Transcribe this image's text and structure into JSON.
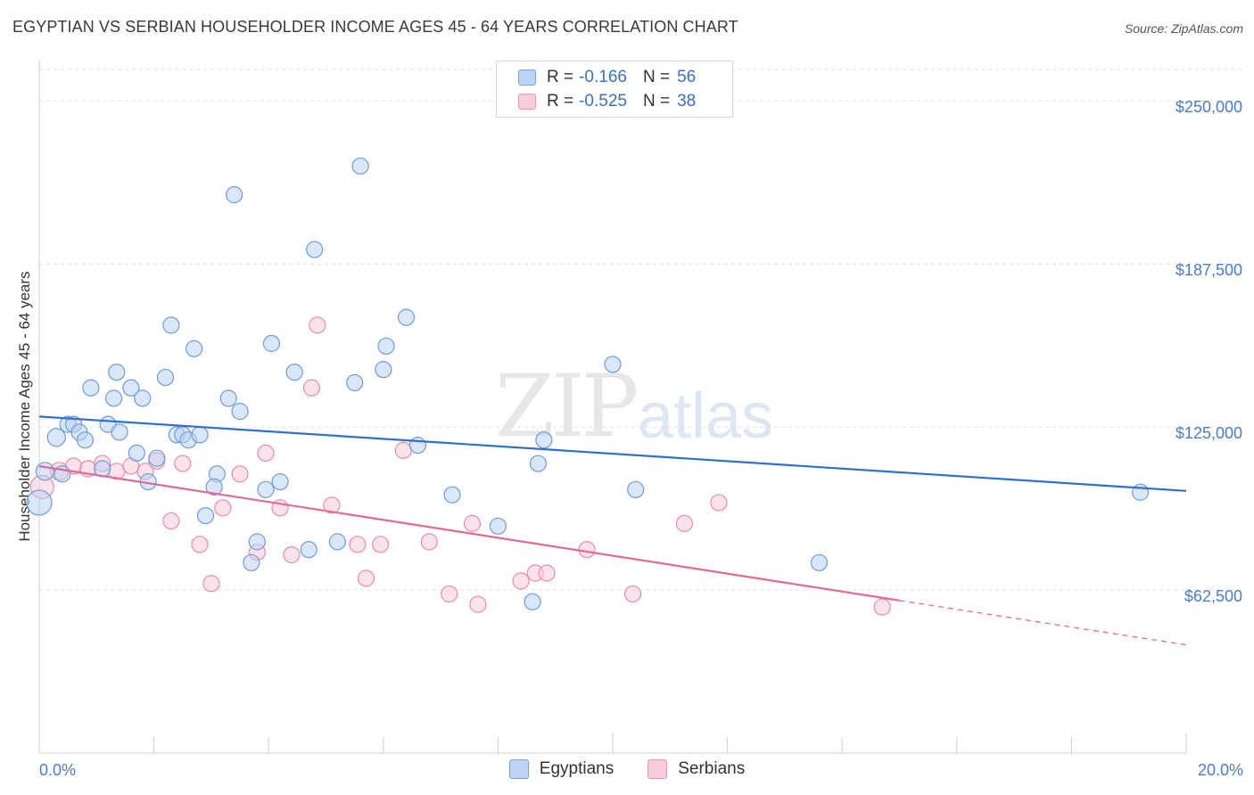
{
  "title": "EGYPTIAN VS SERBIAN HOUSEHOLDER INCOME AGES 45 - 64 YEARS CORRELATION CHART",
  "source": "Source: ZipAtlas.com",
  "watermark": {
    "part1": "ZIP",
    "part2": "atlas"
  },
  "legend_top": {
    "rows": [
      {
        "r_label": "R =",
        "r_value": "-0.166",
        "n_label": "N =",
        "n_value": "56"
      },
      {
        "r_label": "R =",
        "r_value": "-0.525",
        "n_label": "N =",
        "n_value": "38"
      }
    ]
  },
  "legend_bottom": [
    "Egyptians",
    "Serbians"
  ],
  "colors": {
    "blue_fill": "#bcd3f3",
    "blue_stroke": "#6f9bdc",
    "blue_line": "#2f6fd0",
    "pink_fill": "#f9ccd9",
    "pink_stroke": "#e98aa9",
    "pink_line": "#e36a95",
    "axis_label": "#4a7cc9",
    "grid": "#e0e0e0"
  },
  "chart_data": {
    "type": "scatter",
    "title": "EGYPTIAN VS SERBIAN HOUSEHOLDER INCOME AGES 45 - 64 YEARS CORRELATION CHART",
    "xlabel": "",
    "ylabel": "Householder Income Ages 45 - 64 years",
    "xlim": [
      0,
      20
    ],
    "ylim": [
      0,
      262000
    ],
    "x_tick_labels": [
      "0.0%",
      "20.0%"
    ],
    "y_ticks": [
      62500,
      125000,
      187500,
      250000
    ],
    "y_tick_labels": [
      "$62,500",
      "$125,000",
      "$187,500",
      "$250,000"
    ],
    "grid": true,
    "legend_position": "top-center",
    "series": [
      {
        "name": "Egyptians",
        "r": -0.166,
        "n": 56,
        "trend": {
          "x0": 0,
          "y0": 129000,
          "x1": 20,
          "y1": 100500
        },
        "points": [
          [
            0.0,
            96000,
            14
          ],
          [
            0.1,
            108000,
            10
          ],
          [
            0.3,
            121000,
            10
          ],
          [
            0.4,
            107000,
            9
          ],
          [
            0.5,
            126000,
            9
          ],
          [
            0.6,
            126000,
            9
          ],
          [
            0.7,
            123000,
            9
          ],
          [
            0.8,
            120000,
            9
          ],
          [
            0.9,
            140000,
            9
          ],
          [
            1.1,
            109000,
            9
          ],
          [
            1.2,
            126000,
            9
          ],
          [
            1.3,
            136000,
            9
          ],
          [
            1.4,
            123000,
            9
          ],
          [
            1.35,
            146000,
            9
          ],
          [
            1.6,
            140000,
            9
          ],
          [
            1.7,
            115000,
            9
          ],
          [
            1.8,
            136000,
            9
          ],
          [
            1.9,
            104000,
            9
          ],
          [
            2.05,
            113000,
            9
          ],
          [
            2.2,
            144000,
            9
          ],
          [
            2.3,
            164000,
            9
          ],
          [
            2.4,
            122000,
            9
          ],
          [
            2.5,
            122000,
            9
          ],
          [
            2.6,
            120000,
            9
          ],
          [
            2.7,
            155000,
            9
          ],
          [
            2.8,
            122000,
            9
          ],
          [
            2.9,
            91000,
            9
          ],
          [
            3.1,
            107000,
            9
          ],
          [
            3.05,
            102000,
            9
          ],
          [
            3.3,
            136000,
            9
          ],
          [
            3.4,
            214000,
            9
          ],
          [
            3.5,
            131000,
            9
          ],
          [
            3.7,
            73000,
            9
          ],
          [
            3.8,
            81000,
            9
          ],
          [
            3.95,
            101000,
            9
          ],
          [
            4.05,
            157000,
            9
          ],
          [
            4.2,
            104000,
            9
          ],
          [
            4.45,
            146000,
            9
          ],
          [
            4.7,
            78000,
            9
          ],
          [
            4.8,
            193000,
            9
          ],
          [
            5.2,
            81000,
            9
          ],
          [
            5.5,
            142000,
            9
          ],
          [
            5.6,
            225000,
            9
          ],
          [
            6.0,
            147000,
            9
          ],
          [
            6.05,
            156000,
            9
          ],
          [
            6.4,
            167000,
            9
          ],
          [
            6.6,
            118000,
            9
          ],
          [
            7.2,
            99000,
            9
          ],
          [
            8.0,
            87000,
            9
          ],
          [
            8.6,
            58000,
            9
          ],
          [
            8.7,
            111000,
            9
          ],
          [
            8.8,
            120000,
            9
          ],
          [
            10.0,
            149000,
            9
          ],
          [
            10.4,
            101000,
            9
          ],
          [
            13.6,
            73000,
            9
          ],
          [
            19.2,
            100000,
            9
          ]
        ]
      },
      {
        "name": "Serbians",
        "r": -0.525,
        "n": 38,
        "trend": {
          "x0": 0,
          "y0": 110000,
          "x1": 15,
          "y1": 58500,
          "dash_to_x": 20,
          "dash_to_y": 41500
        },
        "points": [
          [
            0.05,
            102000,
            13
          ],
          [
            0.35,
            108000,
            10
          ],
          [
            0.6,
            110000,
            9
          ],
          [
            0.85,
            109000,
            9
          ],
          [
            1.1,
            111000,
            9
          ],
          [
            1.35,
            108000,
            9
          ],
          [
            1.6,
            110000,
            9
          ],
          [
            1.85,
            108000,
            9
          ],
          [
            2.05,
            112000,
            9
          ],
          [
            2.3,
            89000,
            9
          ],
          [
            2.5,
            111000,
            9
          ],
          [
            2.8,
            80000,
            9
          ],
          [
            3.0,
            65000,
            9
          ],
          [
            3.2,
            94000,
            9
          ],
          [
            3.5,
            107000,
            9
          ],
          [
            3.8,
            77000,
            9
          ],
          [
            3.95,
            115000,
            9
          ],
          [
            4.2,
            94000,
            9
          ],
          [
            4.4,
            76000,
            9
          ],
          [
            4.75,
            140000,
            9
          ],
          [
            4.85,
            164000,
            9
          ],
          [
            5.1,
            95000,
            9
          ],
          [
            5.55,
            80000,
            9
          ],
          [
            5.7,
            67000,
            9
          ],
          [
            5.95,
            80000,
            9
          ],
          [
            6.35,
            116000,
            9
          ],
          [
            6.8,
            81000,
            9
          ],
          [
            7.15,
            61000,
            9
          ],
          [
            7.55,
            88000,
            9
          ],
          [
            7.65,
            57000,
            9
          ],
          [
            8.4,
            66000,
            9
          ],
          [
            8.65,
            69000,
            9
          ],
          [
            8.85,
            69000,
            9
          ],
          [
            9.55,
            78000,
            9
          ],
          [
            10.35,
            61000,
            9
          ],
          [
            11.25,
            88000,
            9
          ],
          [
            11.85,
            96000,
            9
          ],
          [
            14.7,
            56000,
            9
          ]
        ]
      }
    ]
  }
}
